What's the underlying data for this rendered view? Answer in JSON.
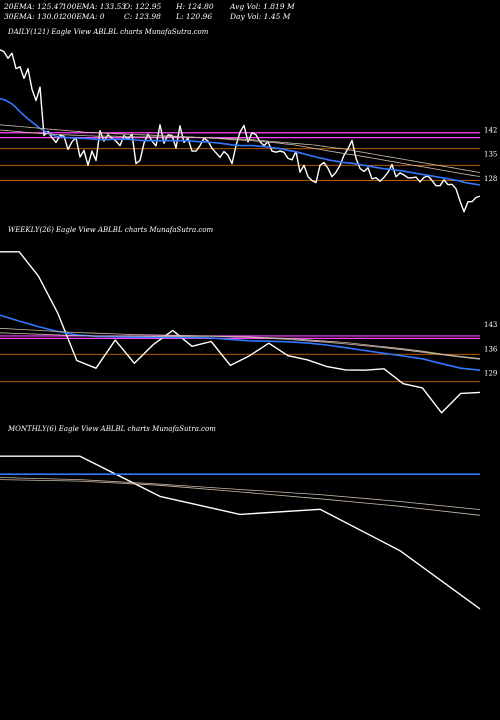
{
  "stats": {
    "row1": [
      "20EMA: 125.47",
      "100EMA: 133.53",
      "O: 122.95",
      "H: 124.80",
      "Avg Vol: 1.819 M"
    ],
    "row2": [
      "30EMA: 130.01",
      "200EMA: 0",
      "C: 123.98",
      "L: 120.96",
      "Day Vol: 1.45 M"
    ]
  },
  "panel_titles": {
    "daily": "DAILY(121) Eagle   View  ABLBL  charts MunafaSutra.com",
    "weekly": "WEEKLY(26) Eagle   View  ABLBL  charts MunafaSutra.com",
    "monthly": "MONTHLY(6) Eagle   View  ABLBL  charts MunafaSutra.com"
  },
  "colors": {
    "price": "#ffffff",
    "ema_short": "#3377ff",
    "resistance": "#ff44ff",
    "support": "#cc6600",
    "ema_long": "#ccbbaa"
  },
  "chart_data": [
    {
      "type": "line",
      "name": "daily",
      "ylim": [
        116,
        168
      ],
      "ticks": [
        142,
        135,
        128
      ],
      "hlines": [
        {
          "y": 141.2,
          "color": "#ff44ff"
        },
        {
          "y": 139.8,
          "color": "#ff44ff"
        },
        {
          "y": 136.6,
          "color": "#cc6600"
        },
        {
          "y": 131.8,
          "color": "#cc6600"
        },
        {
          "y": 127.4,
          "color": "#cc6600"
        }
      ],
      "series": [
        {
          "values": [
            165.2,
            164.6,
            162.7,
            164.2,
            159.7,
            160.3,
            156.9,
            159.7,
            153.8,
            150.5,
            154.4,
            140.4,
            141.6,
            139.8,
            138.4,
            140.4,
            140.2,
            136.4,
            138.6,
            139.8,
            134.2,
            136.1,
            131.8,
            135.9,
            133.2,
            141.8,
            138.8,
            140.6,
            139.6,
            138.8,
            137.5,
            140.4,
            139.4,
            140.8,
            132.3,
            133.2,
            138.2,
            140.8,
            138.8,
            137.4,
            143.5,
            138.2,
            140.6,
            140.4,
            136.8,
            143.2,
            138.4,
            139.6,
            135.9,
            135.9,
            137.5,
            139.6,
            138.8,
            136.7,
            135.4,
            134.1,
            135.8,
            134.7,
            132.3,
            137.5,
            141.4,
            143.3,
            138.6,
            141.2,
            140.6,
            138.6,
            137.5,
            138.6,
            135.9,
            135.6,
            135.9,
            135.6,
            133.8,
            133.4,
            135.8,
            129.8,
            131.8,
            128.5,
            127.4,
            126.8,
            131.8,
            132.6,
            130.9,
            128.5,
            129.8,
            131.8,
            134.7,
            136.6,
            139.0,
            133.8,
            130.9,
            130.0,
            131.1,
            127.9,
            128.2,
            127.2,
            128.3,
            129.8,
            132.0,
            128.5,
            129.6,
            129.0,
            128.2,
            128.2,
            128.4,
            127.0,
            128.3,
            128.7,
            127.4,
            125.9,
            125.9,
            127.6,
            126.2,
            126.3,
            125.0,
            121.5,
            118.4,
            121.3,
            121.3,
            122.5,
            122.9
          ]
        },
        {
          "values": [
            151.0,
            150.8,
            150.2,
            149.5,
            148.5,
            147.3,
            146.2,
            145.2,
            144.3,
            143.4,
            142.5,
            141.8,
            141.1,
            140.6,
            140.2,
            140.0,
            139.9,
            139.8,
            139.7,
            139.7,
            139.6,
            139.6,
            139.5,
            139.4,
            139.3,
            139.2,
            139.2,
            139.2,
            139.3,
            139.3,
            139.3,
            139.3,
            139.3,
            139.2,
            139.1,
            139.0,
            138.9,
            138.9,
            138.9,
            138.9,
            138.9,
            138.9,
            138.9,
            138.9,
            138.9,
            138.9,
            138.9,
            138.9,
            138.8,
            138.7,
            138.6,
            138.6,
            138.5,
            138.4,
            138.3,
            138.2,
            138.0,
            137.9,
            137.7,
            137.6,
            137.5,
            137.5,
            137.5,
            137.5,
            137.4,
            137.3,
            137.2,
            137.1,
            136.9,
            136.8,
            136.6,
            136.4,
            136.1,
            135.9,
            135.7,
            135.4,
            135.1,
            134.8,
            134.5,
            134.2,
            133.9,
            133.7,
            133.4,
            133.2,
            133.0,
            132.8,
            132.6,
            132.5,
            132.4,
            132.2,
            132.0,
            131.8,
            131.6,
            131.4,
            131.2,
            131.0,
            130.8,
            130.7,
            130.6,
            130.4,
            130.3,
            130.1,
            129.9,
            129.7,
            129.5,
            129.3,
            129.1,
            128.9,
            128.7,
            128.5,
            128.3,
            128.1,
            127.9,
            127.7,
            127.5,
            127.2,
            126.9,
            126.7,
            126.5,
            126.3,
            126.1
          ]
        },
        {
          "values": [
            142.0,
            141.9,
            141.8,
            141.7,
            141.6,
            141.5,
            141.4,
            141.3,
            141.2,
            141.1,
            141.0,
            140.9,
            140.9,
            140.8,
            140.7,
            140.7,
            140.6,
            140.6,
            140.5,
            140.5,
            140.4,
            140.4,
            140.3,
            140.3,
            140.2,
            140.2,
            140.2,
            140.2,
            140.2,
            140.2,
            140.1,
            140.1,
            140.1,
            140.1,
            140.0,
            140.0,
            140.0,
            140.0,
            140.0,
            140.0,
            140.0,
            140.0,
            140.0,
            140.0,
            140.0,
            140.0,
            139.9,
            139.9,
            139.9,
            139.8,
            139.8,
            139.7,
            139.7,
            139.6,
            139.6,
            139.5,
            139.4,
            139.3,
            139.2,
            139.2,
            139.1,
            139.0,
            139.0,
            138.9,
            138.8,
            138.7,
            138.6,
            138.5,
            138.4,
            138.3,
            138.2,
            138.0,
            137.9,
            137.8,
            137.6,
            137.4,
            137.2,
            137.0,
            136.8,
            136.6,
            136.4,
            136.2,
            136.0,
            135.8,
            135.6,
            135.4,
            135.2,
            135.0,
            134.9,
            134.7,
            134.5,
            134.3,
            134.1,
            133.9,
            133.7,
            133.5,
            133.3,
            133.1,
            132.9,
            132.7,
            132.5,
            132.3,
            132.1,
            131.9,
            131.7,
            131.5,
            131.3,
            131.1,
            130.9,
            130.7,
            130.5,
            130.3,
            130.1,
            129.9,
            129.7,
            129.5,
            129.3,
            129.1,
            128.9,
            128.7,
            128.6
          ]
        },
        {
          "values": [
            143.5,
            143.4,
            143.3,
            143.2,
            143.1,
            143.0,
            142.9,
            142.8,
            142.7,
            142.6,
            142.5,
            142.4,
            142.3,
            142.2,
            142.1,
            142.0,
            141.9,
            141.8,
            141.7,
            141.6,
            141.5,
            141.4,
            141.3,
            141.3,
            141.2,
            141.1,
            141.1,
            141.0,
            141.0,
            140.9,
            140.9,
            140.8,
            140.8,
            140.7,
            140.7,
            140.6,
            140.6,
            140.5,
            140.5,
            140.4,
            140.4,
            140.3,
            140.3,
            140.2,
            140.2,
            140.1,
            140.1,
            140.0,
            140.0,
            139.9,
            139.9,
            139.8,
            139.8,
            139.7,
            139.7,
            139.6,
            139.6,
            139.5,
            139.5,
            139.4,
            139.4,
            139.3,
            139.3,
            139.2,
            139.1,
            139.0,
            138.9,
            138.8,
            138.7,
            138.6,
            138.5,
            138.4,
            138.3,
            138.2,
            138.1,
            138.0,
            137.9,
            137.8,
            137.7,
            137.6,
            137.4,
            137.3,
            137.1,
            137.0,
            136.8,
            136.7,
            136.5,
            136.3,
            136.1,
            135.9,
            135.7,
            135.5,
            135.3,
            135.1,
            134.9,
            134.7,
            134.5,
            134.3,
            134.1,
            133.9,
            133.7,
            133.5,
            133.3,
            133.1,
            132.9,
            132.7,
            132.5,
            132.3,
            132.1,
            131.9,
            131.7,
            131.5,
            131.3,
            131.1,
            130.9,
            130.7,
            130.5,
            130.3,
            130.1,
            129.9,
            129.7
          ]
        }
      ]
    },
    {
      "type": "line",
      "name": "weekly",
      "ylim": [
        116,
        168
      ],
      "ticks": [
        143,
        136,
        129
      ],
      "hlines": [
        {
          "y": 139.7,
          "color": "#ff44ff"
        },
        {
          "y": 139.0,
          "color": "#ff44ff"
        },
        {
          "y": 134.4,
          "color": "#cc6600"
        },
        {
          "y": 126.5,
          "color": "#cc6600"
        }
      ],
      "series": [
        {
          "values": [
            164.0,
            164.0,
            157.0,
            146.4,
            132.6,
            130.4,
            138.5,
            131.8,
            137.3,
            141.3,
            136.7,
            138.1,
            131.2,
            134.0,
            137.6,
            134.0,
            132.8,
            130.9,
            129.9,
            129.8,
            130.2,
            125.9,
            124.7,
            117.5,
            123.1,
            123.4
          ]
        },
        {
          "values": [
            145.7,
            144.0,
            142.4,
            141.0,
            140.0,
            139.6,
            139.5,
            139.3,
            139.3,
            139.3,
            139.2,
            139.1,
            138.7,
            138.3,
            138.2,
            138.0,
            137.7,
            137.1,
            136.3,
            135.5,
            134.7,
            133.9,
            133.1,
            131.7,
            130.4,
            129.8
          ]
        },
        {
          "values": [
            140.6,
            140.4,
            140.2,
            140.0,
            139.8,
            139.7,
            139.7,
            139.7,
            139.6,
            139.6,
            139.6,
            139.6,
            139.5,
            139.4,
            139.2,
            139.0,
            138.6,
            138.2,
            137.8,
            137.2,
            136.6,
            136.0,
            135.3,
            134.5,
            133.8,
            133.2
          ]
        },
        {
          "values": [
            141.9,
            141.6,
            141.3,
            141.0,
            140.7,
            140.5,
            140.3,
            140.1,
            140.0,
            139.9,
            139.8,
            139.7,
            139.5,
            139.3,
            139.0,
            138.7,
            138.3,
            137.9,
            137.4,
            136.9,
            136.3,
            135.7,
            135.0,
            134.3,
            133.6,
            133.0
          ]
        }
      ]
    },
    {
      "type": "line",
      "name": "monthly",
      "ylim": [
        90,
        170
      ],
      "series": [
        {
          "values": [
            163.6,
            163.6,
            150.2,
            144.2,
            145.9,
            132.1,
            112.7
          ]
        },
        {
          "values": [
            157.6,
            157.6,
            157.6,
            157.6,
            157.6,
            157.6,
            157.6
          ]
        },
        {
          "values": [
            156.5,
            155.8,
            154.3,
            152.5,
            150.8,
            148.5,
            145.8
          ]
        },
        {
          "values": [
            155.8,
            155.3,
            153.9,
            151.7,
            149.4,
            146.9,
            143.9
          ]
        }
      ]
    }
  ]
}
